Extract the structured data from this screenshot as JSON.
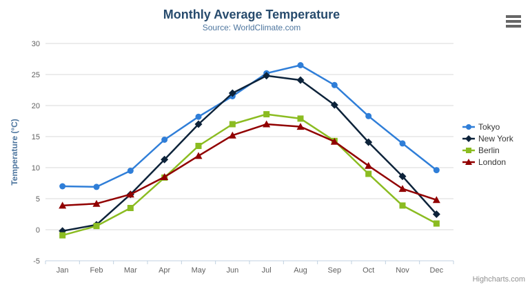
{
  "header": {
    "title": "Monthly Average Temperature",
    "subtitle": "Source: WorldClimate.com"
  },
  "credits": "Highcharts.com",
  "icons": {
    "context_menu_icon": "hamburger"
  },
  "colors": {
    "title": "#274b6d",
    "subtitle": "#4d759e",
    "axis_label": "#606060",
    "axis_title": "#4d759e",
    "axis_line": "#c0d0e0",
    "grid": "#d8d8d8",
    "legend_text": "#333333",
    "credits": "#909090",
    "menu_icon": "#666666"
  },
  "chart_data": {
    "type": "line",
    "title": "Monthly Average Temperature",
    "subtitle": "Source: WorldClimate.com",
    "xlabel": "",
    "ylabel": "Temperature (°C)",
    "ylim": [
      -5,
      30
    ],
    "ytick_step": 5,
    "grid": true,
    "legend_position": "right",
    "categories": [
      "Jan",
      "Feb",
      "Mar",
      "Apr",
      "May",
      "Jun",
      "Jul",
      "Aug",
      "Sep",
      "Oct",
      "Nov",
      "Dec"
    ],
    "series": [
      {
        "name": "Tokyo",
        "color": "#2f7ed8",
        "marker": "circle",
        "values": [
          7.0,
          6.9,
          9.5,
          14.5,
          18.2,
          21.5,
          25.2,
          26.5,
          23.3,
          18.3,
          13.9,
          9.6
        ]
      },
      {
        "name": "New York",
        "color": "#0d233a",
        "marker": "diamond",
        "values": [
          -0.2,
          0.8,
          5.7,
          11.3,
          17.0,
          22.0,
          24.8,
          24.1,
          20.1,
          14.1,
          8.6,
          2.5
        ]
      },
      {
        "name": "Berlin",
        "color": "#8bbc21",
        "marker": "square",
        "values": [
          -0.9,
          0.6,
          3.5,
          8.4,
          13.5,
          17.0,
          18.6,
          17.9,
          14.3,
          9.0,
          3.9,
          1.0
        ]
      },
      {
        "name": "London",
        "color": "#910000",
        "marker": "triangle",
        "values": [
          3.9,
          4.2,
          5.7,
          8.5,
          11.9,
          15.2,
          17.0,
          16.6,
          14.2,
          10.3,
          6.6,
          4.8
        ]
      }
    ]
  }
}
